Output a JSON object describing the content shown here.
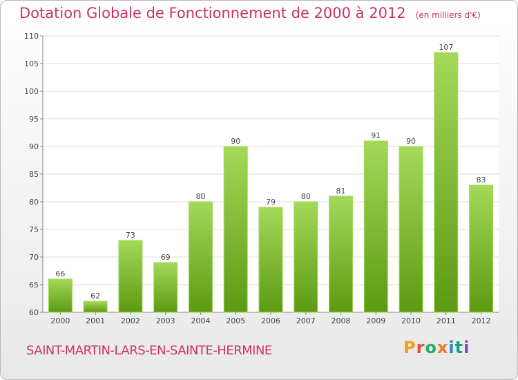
{
  "header": {
    "title": "Dotation Globale de Fonctionnement de 2000 à 2012",
    "unit": "(en milliers d'€)"
  },
  "footer": {
    "commune": "SAINT-MARTIN-LARS-EN-SAINTE-HERMINE",
    "logo": "Proxiti",
    "logo_colors": [
      "#f39c12",
      "#e74c3c",
      "#27ae60",
      "#e67e22",
      "#2e86c1",
      "#16a085",
      "#8e44ad"
    ]
  },
  "chart_data": {
    "type": "bar",
    "title": "Dotation Globale de Fonctionnement de 2000 à 2012",
    "subtitle": "(en milliers d'€)",
    "xlabel": "",
    "ylabel": "",
    "categories": [
      "2000",
      "2001",
      "2002",
      "2003",
      "2004",
      "2005",
      "2006",
      "2007",
      "2008",
      "2009",
      "2010",
      "2011",
      "2012"
    ],
    "values": [
      66,
      62,
      73,
      69,
      80,
      90,
      79,
      80,
      81,
      91,
      90,
      107,
      83
    ],
    "ylim": [
      60,
      110
    ],
    "yticks": [
      60,
      65,
      70,
      75,
      80,
      85,
      90,
      95,
      100,
      105,
      110
    ],
    "grid": true,
    "legend": "none",
    "bar_color": "#7cbd2c",
    "bar_color_light": "#a4d95a",
    "bar_color_dark": "#5c9a12",
    "grid_color": "#dddddd"
  }
}
